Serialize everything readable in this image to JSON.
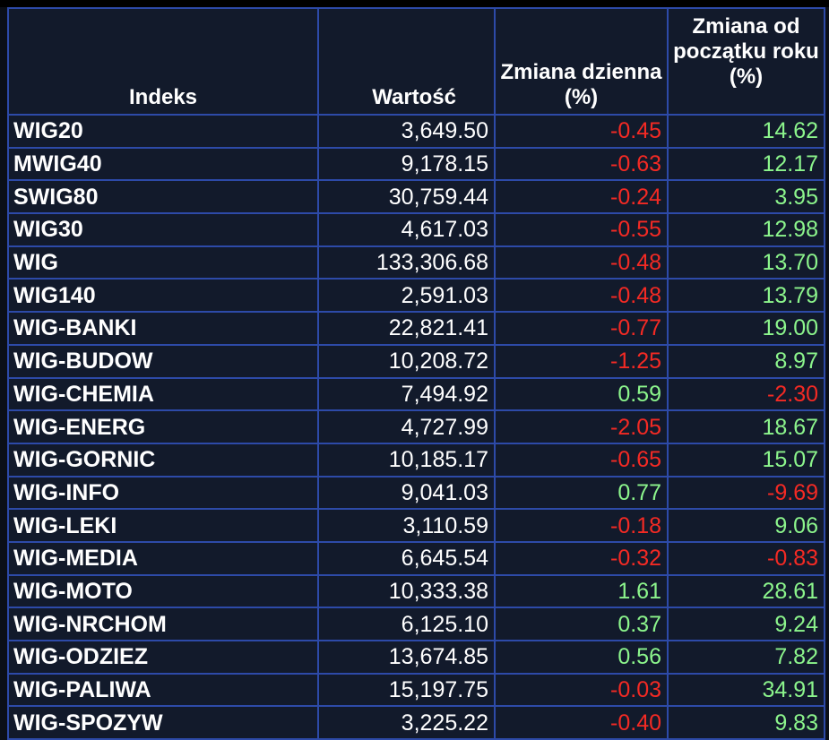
{
  "colors": {
    "background": "#121a2b",
    "grid": "#2d4aa8",
    "text": "#ffffff",
    "positive": "#8cf58c",
    "negative": "#f42a24"
  },
  "table": {
    "headers": {
      "index": "Indeks",
      "value": "Wartość",
      "daily_change": "Zmiana dzienna (%)",
      "ytd_change": "Zmiana od początku roku (%)"
    },
    "rows": [
      {
        "name": "WIG20",
        "value": "3,649.50",
        "daily": "-0.45",
        "ytd": "14.62"
      },
      {
        "name": "MWIG40",
        "value": "9,178.15",
        "daily": "-0.63",
        "ytd": "12.17"
      },
      {
        "name": "SWIG80",
        "value": "30,759.44",
        "daily": "-0.24",
        "ytd": "3.95"
      },
      {
        "name": "WIG30",
        "value": "4,617.03",
        "daily": "-0.55",
        "ytd": "12.98"
      },
      {
        "name": "WIG",
        "value": "133,306.68",
        "daily": "-0.48",
        "ytd": "13.70"
      },
      {
        "name": "WIG140",
        "value": "2,591.03",
        "daily": "-0.48",
        "ytd": "13.79"
      },
      {
        "name": "WIG-BANKI",
        "value": "22,821.41",
        "daily": "-0.77",
        "ytd": "19.00"
      },
      {
        "name": "WIG-BUDOW",
        "value": "10,208.72",
        "daily": "-1.25",
        "ytd": "8.97"
      },
      {
        "name": "WIG-CHEMIA",
        "value": "7,494.92",
        "daily": "0.59",
        "ytd": "-2.30"
      },
      {
        "name": "WIG-ENERG",
        "value": "4,727.99",
        "daily": "-2.05",
        "ytd": "18.67"
      },
      {
        "name": "WIG-GORNIC",
        "value": "10,185.17",
        "daily": "-0.65",
        "ytd": "15.07"
      },
      {
        "name": "WIG-INFO",
        "value": "9,041.03",
        "daily": "0.77",
        "ytd": "-9.69"
      },
      {
        "name": "WIG-LEKI",
        "value": "3,110.59",
        "daily": "-0.18",
        "ytd": "9.06"
      },
      {
        "name": "WIG-MEDIA",
        "value": "6,645.54",
        "daily": "-0.32",
        "ytd": "-0.83"
      },
      {
        "name": "WIG-MOTO",
        "value": "10,333.38",
        "daily": "1.61",
        "ytd": "28.61"
      },
      {
        "name": "WIG-NRCHOM",
        "value": "6,125.10",
        "daily": "0.37",
        "ytd": "9.24"
      },
      {
        "name": "WIG-ODZIEZ",
        "value": "13,674.85",
        "daily": "0.56",
        "ytd": "7.82"
      },
      {
        "name": "WIG-PALIWA",
        "value": "15,197.75",
        "daily": "-0.03",
        "ytd": "34.91"
      },
      {
        "name": "WIG-SPOZYW",
        "value": "3,225.22",
        "daily": "-0.40",
        "ytd": "9.83"
      }
    ]
  }
}
